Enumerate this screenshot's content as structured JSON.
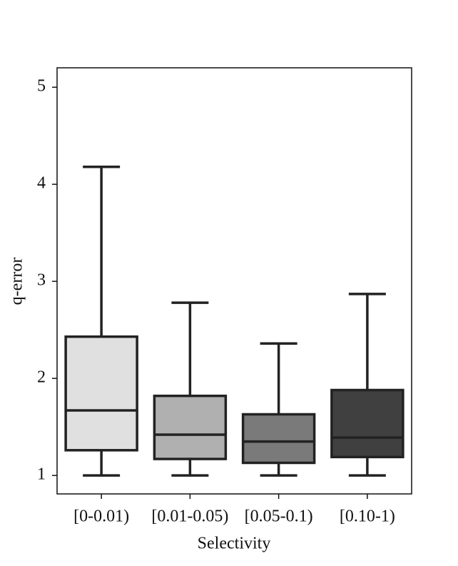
{
  "chart_data": {
    "type": "box",
    "x_label": "Selectivity",
    "y_label": "q-error",
    "categories": [
      "[0-0.01)",
      "[0.01-0.05)",
      "[0.05-0.1)",
      "[0.10-1)"
    ],
    "colors": [
      "#e0e0e0",
      "#b0b0b0",
      "#7a7a7a",
      "#404040"
    ],
    "boxes": [
      {
        "min": 1.0,
        "q1": 1.26,
        "median": 1.67,
        "q3": 2.43,
        "max": 4.18
      },
      {
        "min": 1.0,
        "q1": 1.17,
        "median": 1.42,
        "q3": 1.82,
        "max": 2.78
      },
      {
        "min": 1.0,
        "q1": 1.13,
        "median": 1.35,
        "q3": 1.63,
        "max": 2.36
      },
      {
        "min": 1.0,
        "q1": 1.19,
        "median": 1.39,
        "q3": 1.88,
        "max": 2.87
      }
    ],
    "ylim": [
      0.81,
      5.2
    ],
    "yticks": [
      1,
      2,
      3,
      4,
      5
    ]
  }
}
